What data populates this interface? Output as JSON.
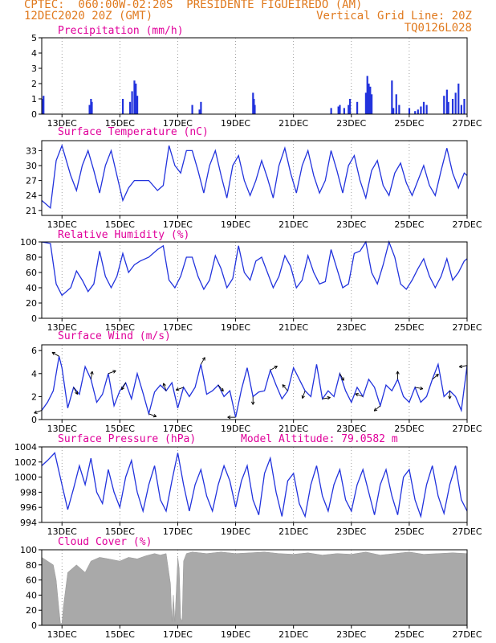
{
  "header": {
    "line1": "CPTEC:  060:00W-02:20S  PRESIDENTE FIGUEIREDO (AM)",
    "line2": "12DEC2020 20Z (GMT)",
    "grid_note": "Vertical Grid Line: 20Z",
    "code": "TQ0126L028"
  },
  "colors": {
    "header": "#e07a1f",
    "title": "#e0009a",
    "series": "#2233dd",
    "cloud": "#a9a9a9",
    "grid": "#888888"
  },
  "x_axis": {
    "ticks": [
      "13DEC",
      "15DEC",
      "17DEC",
      "19DEC",
      "21DEC",
      "23DEC",
      "25DEC",
      "27DEC"
    ],
    "tick_days": [
      13,
      15,
      17,
      19,
      21,
      23,
      25,
      27
    ],
    "range_days": [
      12.3,
      27.0
    ],
    "grid_hour": "20Z"
  },
  "chart_data": [
    {
      "type": "bar",
      "title": "Precipitation (mm/h)",
      "ylim": [
        0,
        5
      ],
      "yticks": [
        0,
        1,
        2,
        3,
        4,
        5
      ],
      "x": [
        12.33,
        12.36,
        13.95,
        14.0,
        14.03,
        15.1,
        15.35,
        15.42,
        15.5,
        15.55,
        15.6,
        17.5,
        17.75,
        17.8,
        19.6,
        19.63,
        19.66,
        22.3,
        22.55,
        22.6,
        22.75,
        22.9,
        22.95,
        23.2,
        23.5,
        23.55,
        23.6,
        23.65,
        23.7,
        24.4,
        24.45,
        24.55,
        24.65,
        25.0,
        25.2,
        25.3,
        25.4,
        25.5,
        25.6,
        26.2,
        26.3,
        26.35,
        26.5,
        26.6,
        26.7,
        26.8,
        26.9
      ],
      "values": [
        1.0,
        1.2,
        0.6,
        1.0,
        0.8,
        1.0,
        0.8,
        1.5,
        2.2,
        2.0,
        1.2,
        0.6,
        0.3,
        0.8,
        1.4,
        1.0,
        0.6,
        0.4,
        0.5,
        0.6,
        0.4,
        0.6,
        1.0,
        0.8,
        1.4,
        2.5,
        2.0,
        1.8,
        1.3,
        2.2,
        0.4,
        1.3,
        0.6,
        0.4,
        0.2,
        0.3,
        0.5,
        0.8,
        0.6,
        1.2,
        1.6,
        0.8,
        1.0,
        1.4,
        2.0,
        0.6,
        1.0
      ]
    },
    {
      "type": "line",
      "title": "Surface Temperature (nC)",
      "ylim": [
        20,
        35
      ],
      "yticks": [
        21,
        24,
        27,
        30,
        33
      ],
      "x": [
        12.3,
        12.6,
        12.8,
        13.0,
        13.3,
        13.5,
        13.7,
        13.9,
        14.1,
        14.3,
        14.5,
        14.7,
        14.9,
        15.1,
        15.3,
        15.5,
        15.7,
        16.0,
        16.3,
        16.5,
        16.7,
        16.9,
        17.1,
        17.3,
        17.5,
        17.7,
        17.9,
        18.1,
        18.3,
        18.5,
        18.7,
        18.9,
        19.1,
        19.3,
        19.5,
        19.7,
        19.9,
        20.1,
        20.3,
        20.5,
        20.7,
        20.9,
        21.1,
        21.3,
        21.5,
        21.7,
        21.9,
        22.1,
        22.3,
        22.5,
        22.7,
        22.9,
        23.1,
        23.3,
        23.5,
        23.7,
        23.9,
        24.1,
        24.3,
        24.5,
        24.7,
        24.9,
        25.1,
        25.3,
        25.5,
        25.7,
        25.9,
        26.1,
        26.3,
        26.5,
        26.7,
        26.9,
        27.0
      ],
      "values": [
        23,
        21.5,
        31,
        34,
        28,
        25,
        30,
        33,
        29,
        24.5,
        30,
        33,
        28,
        23,
        25.5,
        27,
        27,
        27,
        25,
        26,
        34,
        30,
        28.5,
        33,
        33,
        29,
        24.5,
        30,
        33,
        28,
        23.5,
        30,
        32,
        27,
        24,
        27,
        31,
        27.5,
        23.5,
        30,
        33.5,
        28.5,
        24.5,
        30,
        33,
        28,
        24.5,
        27,
        33,
        29,
        24.5,
        30,
        32,
        27,
        23.5,
        29,
        31,
        26,
        24,
        28.5,
        30.5,
        26.5,
        24,
        27,
        30,
        26,
        24,
        29,
        33.5,
        28.5,
        25.5,
        28.5,
        28
      ]
    },
    {
      "type": "line",
      "title": "Relative Humidity (%)",
      "ylim": [
        0,
        100
      ],
      "yticks": [
        0,
        20,
        40,
        60,
        80,
        100
      ],
      "x": [
        12.3,
        12.6,
        12.8,
        13.0,
        13.3,
        13.5,
        13.7,
        13.9,
        14.1,
        14.3,
        14.5,
        14.7,
        14.9,
        15.1,
        15.3,
        15.5,
        15.7,
        16.0,
        16.3,
        16.5,
        16.7,
        16.9,
        17.1,
        17.3,
        17.5,
        17.7,
        17.9,
        18.1,
        18.3,
        18.5,
        18.7,
        18.9,
        19.1,
        19.3,
        19.5,
        19.7,
        19.9,
        20.1,
        20.3,
        20.5,
        20.7,
        20.9,
        21.1,
        21.3,
        21.5,
        21.7,
        21.9,
        22.1,
        22.3,
        22.5,
        22.7,
        22.9,
        23.1,
        23.3,
        23.5,
        23.7,
        23.9,
        24.1,
        24.3,
        24.5,
        24.7,
        24.9,
        25.1,
        25.3,
        25.5,
        25.7,
        25.9,
        26.1,
        26.3,
        26.5,
        26.7,
        26.9,
        27.0
      ],
      "values": [
        100,
        98,
        45,
        30,
        40,
        62,
        50,
        35,
        45,
        88,
        55,
        40,
        55,
        85,
        60,
        70,
        75,
        80,
        90,
        95,
        50,
        40,
        55,
        80,
        80,
        55,
        38,
        50,
        82,
        65,
        40,
        52,
        95,
        60,
        50,
        75,
        80,
        60,
        40,
        55,
        82,
        68,
        40,
        50,
        82,
        60,
        45,
        48,
        90,
        65,
        40,
        45,
        85,
        88,
        100,
        60,
        45,
        70,
        100,
        80,
        45,
        38,
        50,
        65,
        78,
        55,
        40,
        55,
        78,
        50,
        60,
        75,
        78
      ]
    },
    {
      "type": "line",
      "title": "Surface Wind (m/s)",
      "ylim": [
        0,
        6.5
      ],
      "yticks": [
        0,
        2,
        4,
        6
      ],
      "vectors": true,
      "x": [
        12.3,
        12.5,
        12.7,
        12.9,
        13.0,
        13.2,
        13.4,
        13.6,
        13.8,
        14.0,
        14.2,
        14.4,
        14.6,
        14.8,
        15.0,
        15.2,
        15.4,
        15.6,
        15.8,
        16.0,
        16.2,
        16.4,
        16.6,
        16.8,
        17.0,
        17.2,
        17.4,
        17.6,
        17.8,
        18.0,
        18.2,
        18.4,
        18.6,
        18.8,
        19.0,
        19.2,
        19.4,
        19.6,
        19.8,
        20.0,
        20.2,
        20.4,
        20.6,
        20.8,
        21.0,
        21.2,
        21.4,
        21.6,
        21.8,
        22.0,
        22.2,
        22.4,
        22.6,
        22.8,
        23.0,
        23.2,
        23.4,
        23.6,
        23.8,
        24.0,
        24.2,
        24.4,
        24.6,
        24.8,
        25.0,
        25.2,
        25.4,
        25.6,
        25.8,
        26.0,
        26.2,
        26.4,
        26.6,
        26.8,
        27.0
      ],
      "values": [
        0.8,
        1.5,
        2.5,
        5.5,
        4.5,
        1.0,
        2.8,
        2.2,
        4.6,
        3.5,
        1.5,
        2.2,
        4.0,
        1.2,
        2.5,
        3.2,
        1.8,
        4.0,
        2.3,
        0.5,
        2.4,
        3.0,
        2.5,
        3.2,
        1.0,
        2.8,
        2.0,
        2.8,
        4.8,
        2.2,
        2.5,
        3.0,
        2.0,
        2.5,
        0.2,
        2.6,
        4.5,
        2.0,
        2.4,
        2.5,
        4.3,
        3.0,
        1.8,
        2.5,
        4.5,
        3.5,
        2.5,
        2.0,
        4.8,
        1.8,
        2.5,
        2.0,
        4.0,
        2.5,
        1.5,
        2.8,
        2.0,
        3.5,
        2.8,
        1.2,
        3.0,
        2.5,
        3.5,
        2.0,
        1.5,
        2.8,
        1.5,
        2.0,
        3.5,
        4.8,
        2.0,
        2.5,
        2.0,
        0.8,
        4.7
      ]
    },
    {
      "type": "line",
      "title": "Surface Pressure (hPa)",
      "annotation": "Model Altitude: 79.0582 m",
      "ylim": [
        994,
        1004
      ],
      "yticks": [
        994,
        996,
        998,
        1000,
        1002,
        1004
      ],
      "x": [
        12.3,
        12.5,
        12.75,
        13.0,
        13.2,
        13.4,
        13.6,
        13.8,
        14.0,
        14.2,
        14.4,
        14.6,
        14.8,
        15.0,
        15.2,
        15.4,
        15.6,
        15.8,
        16.0,
        16.2,
        16.4,
        16.6,
        16.8,
        17.0,
        17.2,
        17.4,
        17.6,
        17.8,
        18.0,
        18.2,
        18.4,
        18.6,
        18.8,
        19.0,
        19.2,
        19.4,
        19.6,
        19.8,
        20.0,
        20.2,
        20.4,
        20.6,
        20.8,
        21.0,
        21.2,
        21.4,
        21.6,
        21.8,
        22.0,
        22.2,
        22.4,
        22.6,
        22.8,
        23.0,
        23.2,
        23.4,
        23.6,
        23.8,
        24.0,
        24.2,
        24.4,
        24.6,
        24.8,
        25.0,
        25.2,
        25.4,
        25.6,
        25.8,
        26.0,
        26.2,
        26.4,
        26.6,
        26.8,
        27.0
      ],
      "values": [
        1001.5,
        1002.2,
        1003.2,
        999.0,
        995.7,
        998.5,
        1001.5,
        999.0,
        1002.5,
        998.0,
        996.5,
        1001.0,
        998.0,
        996.0,
        1000.0,
        1002.2,
        998.0,
        995.5,
        999.0,
        1001.5,
        997.0,
        995.5,
        999.5,
        1003.2,
        999.0,
        995.5,
        999.0,
        1001.0,
        997.5,
        995.5,
        999.0,
        1001.5,
        999.5,
        996.0,
        999.5,
        1001.5,
        997.0,
        995.0,
        1000.5,
        1002.5,
        998.0,
        994.8,
        999.5,
        1000.5,
        996.5,
        994.8,
        999.0,
        1001.5,
        997.5,
        995.5,
        999.0,
        1001.0,
        997.0,
        995.5,
        999.0,
        1001.0,
        998.0,
        995.0,
        999.0,
        1001.0,
        997.5,
        995.0,
        1000.0,
        1001.0,
        997.0,
        994.8,
        999.0,
        1001.5,
        997.5,
        995.2,
        999.0,
        1001.5,
        997.0,
        995.5
      ]
    },
    {
      "type": "area",
      "title": "Cloud Cover (%)",
      "ylim": [
        0,
        100
      ],
      "yticks": [
        0,
        20,
        40,
        60,
        80,
        100
      ],
      "x": [
        12.3,
        12.5,
        12.7,
        12.8,
        12.9,
        12.95,
        13.0,
        13.05,
        13.2,
        13.5,
        13.8,
        14.0,
        14.3,
        14.6,
        15.0,
        15.3,
        15.6,
        15.9,
        16.2,
        16.4,
        16.6,
        16.75,
        16.8,
        16.85,
        16.9,
        17.0,
        17.05,
        17.1,
        17.15,
        17.2,
        17.3,
        17.5,
        18.0,
        18.5,
        19.0,
        19.5,
        20.0,
        20.5,
        21.0,
        21.5,
        22.0,
        22.5,
        23.0,
        23.5,
        24.0,
        24.5,
        25.0,
        25.5,
        26.0,
        26.5,
        27.0
      ],
      "values": [
        90,
        85,
        80,
        60,
        20,
        2,
        3,
        25,
        70,
        80,
        70,
        85,
        90,
        88,
        85,
        90,
        88,
        92,
        95,
        93,
        95,
        55,
        5,
        40,
        5,
        90,
        75,
        10,
        5,
        85,
        95,
        97,
        95,
        97,
        95,
        96,
        97,
        95,
        94,
        96,
        93,
        95,
        94,
        97,
        93,
        95,
        97,
        94,
        95,
        96,
        95
      ]
    }
  ]
}
